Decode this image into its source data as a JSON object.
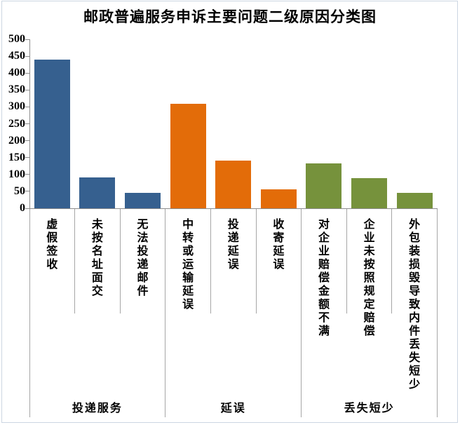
{
  "title": "邮政普遍服务申诉主要问题二级原因分类图",
  "chart_data": {
    "type": "bar",
    "title": "邮政普遍服务申诉主要问题二级原因分类图",
    "categories": [
      "虚假签收",
      "未按名址面交",
      "无法投递邮件",
      "中转或运输延误",
      "投递延误",
      "收寄延误",
      "对企业赔偿金额不满",
      "企业未按照规定赔偿",
      "外包装损毁导致内件丢失短少"
    ],
    "values": [
      440,
      92,
      45,
      310,
      142,
      57,
      132,
      90,
      45
    ],
    "groups": [
      {
        "label": "投递服务",
        "count": 3,
        "color": "#36608F"
      },
      {
        "label": "延误",
        "count": 3,
        "color": "#E36C09"
      },
      {
        "label": "丢失短少",
        "count": 3,
        "color": "#76923C"
      }
    ],
    "bar_colors": [
      "#36608F",
      "#36608F",
      "#36608F",
      "#E36C09",
      "#E36C09",
      "#E36C09",
      "#76923C",
      "#76923C",
      "#76923C"
    ],
    "ylim": [
      0,
      500
    ],
    "yticks": [
      0,
      50,
      100,
      150,
      200,
      250,
      300,
      350,
      400,
      450,
      500
    ],
    "grid": false,
    "legend_position": "none",
    "axis_color": "#8C8C8C",
    "divider_color": "#A6A6A6"
  }
}
